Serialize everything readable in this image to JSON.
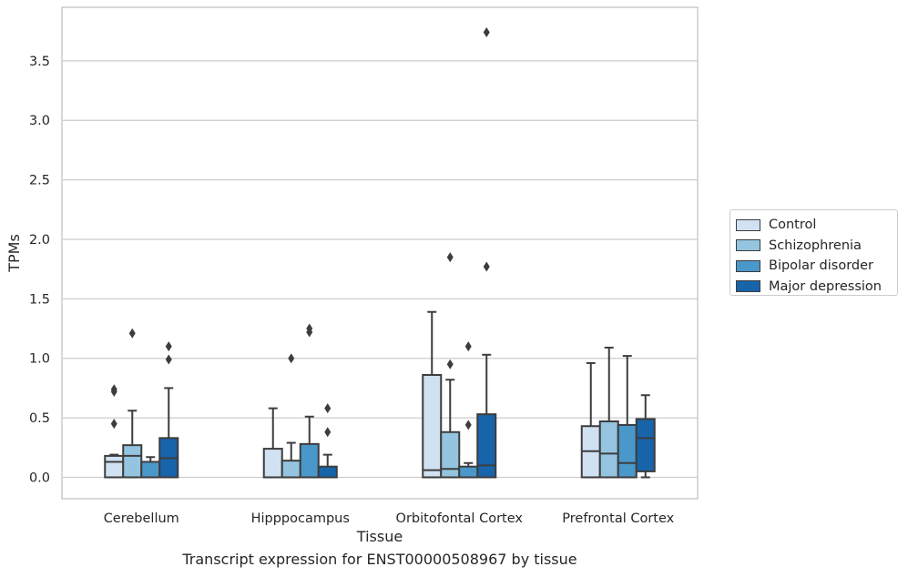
{
  "chart_data": {
    "type": "boxplot",
    "caption": "Transcript expression for ENST00000508967 by tissue",
    "xlabel": "Tissue",
    "ylabel": "TPMs",
    "ylim": [
      -0.18,
      3.95
    ],
    "yticks": [
      0.0,
      0.5,
      1.0,
      1.5,
      2.0,
      2.5,
      3.0,
      3.5
    ],
    "ytick_labels": [
      "0.0",
      "0.5",
      "1.0",
      "1.5",
      "2.0",
      "2.5",
      "3.0",
      "3.5"
    ],
    "grid": "horizontal",
    "legend_position": "right",
    "categories": [
      "Cerebellum",
      "Hipppocampus",
      "Orbitofontal Cortex",
      "Prefrontal Cortex"
    ],
    "series": [
      {
        "name": "Control",
        "color": "#d0e1f2",
        "boxes": [
          {
            "whislo": 0.0,
            "q1": 0.0,
            "med": 0.13,
            "q3": 0.18,
            "whishi": 0.19,
            "fliers": [
              0.45,
              0.72,
              0.74
            ]
          },
          {
            "whislo": 0.0,
            "q1": 0.0,
            "med": 0.0,
            "q3": 0.24,
            "whishi": 0.58,
            "fliers": []
          },
          {
            "whislo": 0.0,
            "q1": 0.0,
            "med": 0.06,
            "q3": 0.86,
            "whishi": 1.39,
            "fliers": []
          },
          {
            "whislo": 0.0,
            "q1": 0.0,
            "med": 0.22,
            "q3": 0.43,
            "whishi": 0.96,
            "fliers": []
          }
        ]
      },
      {
        "name": "Schizophrenia",
        "color": "#94c4df",
        "boxes": [
          {
            "whislo": 0.0,
            "q1": 0.0,
            "med": 0.18,
            "q3": 0.27,
            "whishi": 0.56,
            "fliers": [
              1.21
            ]
          },
          {
            "whislo": 0.0,
            "q1": 0.0,
            "med": 0.0,
            "q3": 0.14,
            "whishi": 0.29,
            "fliers": [
              1.0
            ]
          },
          {
            "whislo": 0.0,
            "q1": 0.0,
            "med": 0.07,
            "q3": 0.38,
            "whishi": 0.82,
            "fliers": [
              0.95,
              1.85
            ]
          },
          {
            "whislo": 0.0,
            "q1": 0.0,
            "med": 0.2,
            "q3": 0.47,
            "whishi": 1.09,
            "fliers": []
          }
        ]
      },
      {
        "name": "Bipolar disorder",
        "color": "#4a98c9",
        "boxes": [
          {
            "whislo": 0.0,
            "q1": 0.0,
            "med": 0.0,
            "q3": 0.13,
            "whishi": 0.17,
            "fliers": []
          },
          {
            "whislo": 0.0,
            "q1": 0.0,
            "med": 0.0,
            "q3": 0.28,
            "whishi": 0.51,
            "fliers": [
              1.22,
              1.25
            ]
          },
          {
            "whislo": 0.0,
            "q1": 0.0,
            "med": 0.0,
            "q3": 0.09,
            "whishi": 0.12,
            "fliers": [
              0.44,
              1.1
            ]
          },
          {
            "whislo": 0.0,
            "q1": 0.0,
            "med": 0.12,
            "q3": 0.44,
            "whishi": 1.02,
            "fliers": []
          }
        ]
      },
      {
        "name": "Major depression",
        "color": "#1764ab",
        "boxes": [
          {
            "whislo": 0.0,
            "q1": 0.0,
            "med": 0.16,
            "q3": 0.33,
            "whishi": 0.75,
            "fliers": [
              0.99,
              1.1
            ]
          },
          {
            "whislo": 0.0,
            "q1": 0.0,
            "med": 0.0,
            "q3": 0.09,
            "whishi": 0.19,
            "fliers": [
              0.38,
              0.58
            ]
          },
          {
            "whislo": 0.0,
            "q1": 0.0,
            "med": 0.1,
            "q3": 0.53,
            "whishi": 1.03,
            "fliers": [
              1.77,
              3.74
            ]
          },
          {
            "whislo": 0.0,
            "q1": 0.05,
            "med": 0.33,
            "q3": 0.49,
            "whishi": 0.69,
            "fliers": []
          }
        ]
      }
    ]
  }
}
